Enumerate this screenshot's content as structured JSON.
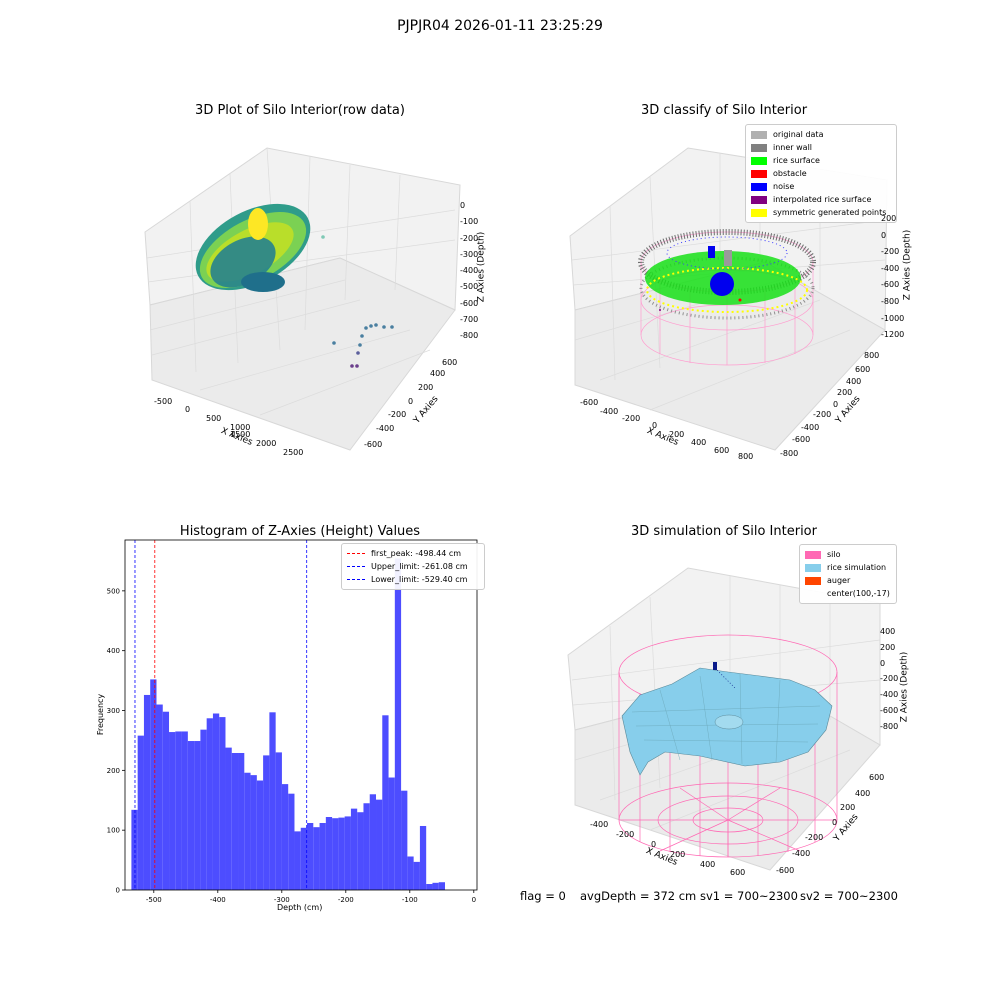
{
  "suptitle": "PJPJR04 2026-01-11 23:25:29",
  "panel1": {
    "title": "3D Plot of Silo Interior(row data)",
    "xlabel": "X Axies",
    "ylabel": "Y Axies",
    "zlabel": "Z Axies (Depth)",
    "xticks": [
      "-500",
      "0",
      "500",
      "1000",
      "1500",
      "2000",
      "2500"
    ],
    "yticks": [
      "-600",
      "-400",
      "-200",
      "0",
      "200",
      "400",
      "600"
    ],
    "zticks": [
      "0",
      "-100",
      "-200",
      "-300",
      "-400",
      "-500",
      "-600",
      "-700",
      "-800"
    ]
  },
  "panel2": {
    "title": "3D classify of Silo Interior",
    "xlabel": "X Axies",
    "ylabel": "Y Axies",
    "zlabel": "Z Axies (Depth)",
    "xticks": [
      "-600",
      "-400",
      "-200",
      "0",
      "200",
      "400",
      "600",
      "800"
    ],
    "yticks": [
      "-800",
      "-600",
      "-400",
      "-200",
      "0",
      "200",
      "400",
      "600",
      "800"
    ],
    "zticks": [
      "200",
      "0",
      "-200",
      "-400",
      "-600",
      "-800",
      "-1000",
      "-1200"
    ],
    "legend": [
      {
        "label": "original data",
        "color": "#b0b0b0"
      },
      {
        "label": "inner wall",
        "color": "#808080"
      },
      {
        "label": "rice surface",
        "color": "#00ff00"
      },
      {
        "label": "obstacle",
        "color": "#ff0000"
      },
      {
        "label": "noise",
        "color": "#0000ff"
      },
      {
        "label": "interpolated rice surface",
        "color": "#800080"
      },
      {
        "label": "symmetric generated points",
        "color": "#ffff00"
      }
    ]
  },
  "panel3": {
    "title": "Histogram of Z-Axies (Height) Values",
    "xlabel": "Depth (cm)",
    "ylabel": "Frequency",
    "legend": [
      {
        "label": "first_peak: -498.44 cm",
        "color": "#ff0000"
      },
      {
        "label": "Upper_limit: -261.08 cm",
        "color": "#0000ff"
      },
      {
        "label": "Lower_limit: -529.40 cm",
        "color": "#0000ff"
      }
    ]
  },
  "panel4": {
    "title": "3D simulation of Silo Interior",
    "xlabel": "X Axies",
    "ylabel": "Y Axies",
    "zlabel": "Z Axies (Depth)",
    "xticks": [
      "-400",
      "-200",
      "0",
      "200",
      "400",
      "600"
    ],
    "yticks": [
      "-600",
      "-400",
      "-200",
      "0",
      "200",
      "400",
      "600"
    ],
    "zticks": [
      "400",
      "200",
      "0",
      "-200",
      "-400",
      "-600",
      "-800"
    ],
    "legend": [
      {
        "label": "silo",
        "color": "#ff69b4"
      },
      {
        "label": "rice simulation",
        "color": "#87ceeb"
      },
      {
        "label": "auger",
        "color": "#ff4500"
      },
      {
        "label": "center(100,-17)",
        "color": ""
      }
    ]
  },
  "footer": {
    "flag": "flag = 0",
    "avg": "avgDepth = 372 cm",
    "sv1": "sv1 = 700~2300",
    "sv2": "sv2 = 700~2300"
  },
  "chart_data": [
    {
      "type": "scatter",
      "title": "3D Plot of Silo Interior(row data)",
      "xlabel": "X Axies",
      "ylabel": "Y Axies",
      "zlabel": "Z Axies (Depth)",
      "xlim": [
        -600,
        2700
      ],
      "ylim": [
        -650,
        700
      ],
      "zlim": [
        -850,
        20
      ],
      "colormap": "viridis"
    },
    {
      "type": "scatter",
      "title": "3D classify of Silo Interior",
      "xlabel": "X Axies",
      "ylabel": "Y Axies",
      "zlabel": "Z Axies (Depth)",
      "xlim": [
        -750,
        900
      ],
      "ylim": [
        -850,
        850
      ],
      "zlim": [
        -1300,
        250
      ],
      "legend_position": "top-right"
    },
    {
      "type": "bar",
      "title": "Histogram of Z-Axies (Height) Values",
      "xlabel": "Depth (cm)",
      "ylabel": "Frequency",
      "xlim": [
        -545,
        5
      ],
      "ylim": [
        0,
        585
      ],
      "xticks": [
        -500,
        -400,
        -300,
        -200,
        -100,
        0
      ],
      "yticks": [
        0,
        100,
        200,
        300,
        400,
        500
      ],
      "bin_start": -535,
      "bin_width": 9.8,
      "values": [
        134,
        258,
        326,
        352,
        310,
        298,
        264,
        265,
        265,
        249,
        249,
        268,
        287,
        295,
        289,
        238,
        229,
        229,
        196,
        192,
        183,
        225,
        297,
        230,
        177,
        161,
        98,
        104,
        112,
        105,
        112,
        122,
        120,
        121,
        123,
        136,
        130,
        145,
        160,
        151,
        292,
        188,
        554,
        166,
        56,
        47,
        107,
        10,
        12,
        13
      ],
      "vlines": [
        {
          "x": -498.44,
          "label": "first_peak: -498.44 cm",
          "color": "#ff0000"
        },
        {
          "x": -261.08,
          "label": "Upper_limit: -261.08 cm",
          "color": "#0000ff"
        },
        {
          "x": -529.4,
          "label": "Lower_limit: -529.40 cm",
          "color": "#0000ff"
        }
      ],
      "bar_color": "#4d4dff",
      "legend_position": "top-right"
    },
    {
      "type": "area",
      "title": "3D simulation of Silo Interior",
      "xlabel": "X Axies",
      "ylabel": "Y Axies",
      "zlabel": "Z Axies (Depth)",
      "xlim": [
        -500,
        700
      ],
      "ylim": [
        -700,
        700
      ],
      "zlim": [
        -900,
        450
      ],
      "legend_position": "top-right"
    }
  ]
}
